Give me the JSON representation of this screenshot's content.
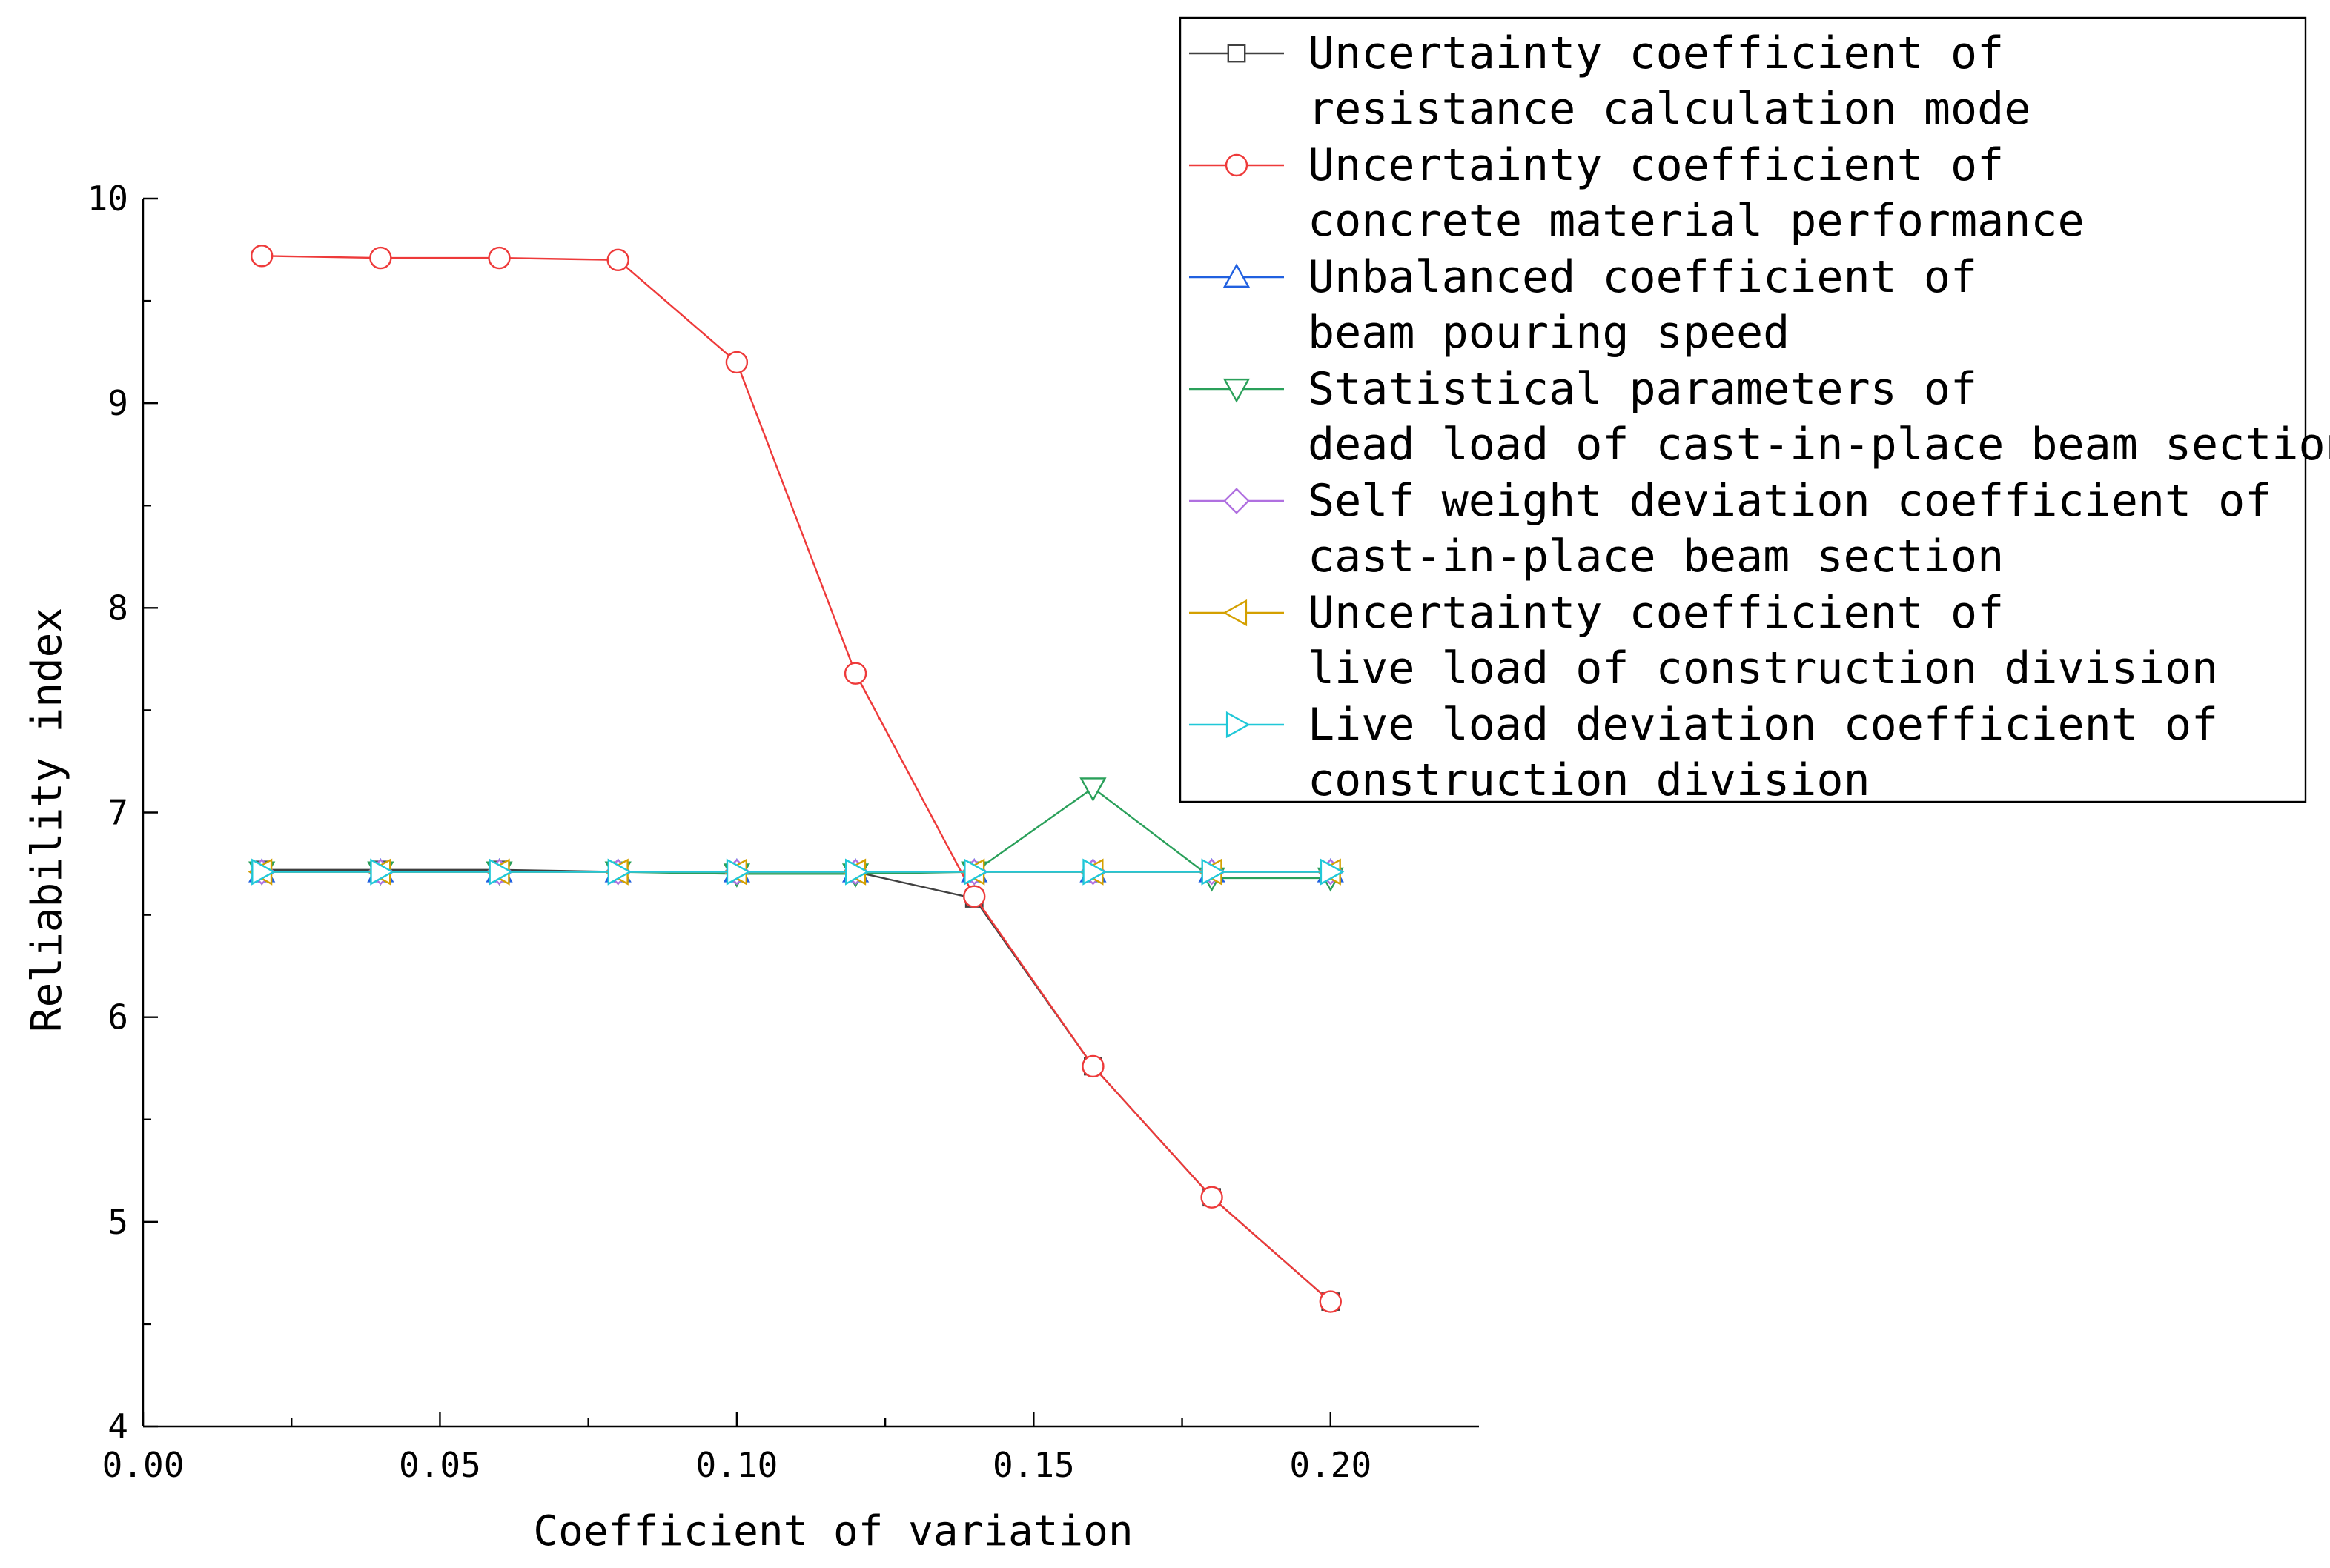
{
  "chart_data": {
    "type": "line",
    "xlabel": "Coefficient of variation",
    "ylabel": "Reliability index",
    "xlim": [
      0.0,
      0.225
    ],
    "ylim": [
      4,
      10
    ],
    "xticks": [
      0.0,
      0.05,
      0.1,
      0.15,
      0.2
    ],
    "xtick_labels": [
      "0.00",
      "0.05",
      "0.10",
      "0.15",
      "0.20"
    ],
    "yticks": [
      4,
      5,
      6,
      7,
      8,
      9,
      10
    ],
    "ytick_labels": [
      "4",
      "5",
      "6",
      "7",
      "8",
      "9",
      "10"
    ],
    "grid": false,
    "legend_position": "top-right",
    "x": [
      0.02,
      0.04,
      0.06,
      0.08,
      0.1,
      0.12,
      0.14,
      0.16,
      0.18,
      0.2
    ],
    "series": [
      {
        "name": "Uncertainty coefficient of\nresistance calculation mode",
        "color": "#404040",
        "marker": "square",
        "values": [
          6.72,
          6.72,
          6.72,
          6.71,
          6.71,
          6.71,
          6.58,
          5.76,
          5.12,
          4.61
        ]
      },
      {
        "name": "Uncertainty coefficient of\nconcrete material performance",
        "color": "#ee3a3a",
        "marker": "circle",
        "values": [
          9.72,
          9.71,
          9.71,
          9.7,
          9.2,
          7.68,
          6.59,
          5.76,
          5.12,
          4.61
        ]
      },
      {
        "name": "Unbalanced coefficient of\nbeam pouring speed",
        "color": "#2060e0",
        "marker": "triangle-up",
        "values": [
          6.71,
          6.71,
          6.71,
          6.71,
          6.71,
          6.71,
          6.71,
          6.71,
          6.71,
          6.71
        ]
      },
      {
        "name": "Statistical parameters of\ndead load of cast-in-place beam section",
        "color": "#2aa05a",
        "marker": "triangle-down",
        "values": [
          6.71,
          6.71,
          6.71,
          6.71,
          6.7,
          6.7,
          6.71,
          7.12,
          6.68,
          6.68
        ]
      },
      {
        "name": "Self weight deviation coefficient of\ncast-in-place beam section",
        "color": "#b070e0",
        "marker": "diamond",
        "values": [
          6.71,
          6.71,
          6.71,
          6.71,
          6.71,
          6.71,
          6.71,
          6.71,
          6.71,
          6.71
        ]
      },
      {
        "name": "Uncertainty coefficient of\nlive load of construction division",
        "color": "#d4a000",
        "marker": "triangle-left",
        "values": [
          6.71,
          6.71,
          6.71,
          6.71,
          6.71,
          6.71,
          6.71,
          6.71,
          6.71,
          6.71
        ]
      },
      {
        "name": "Live load deviation coefficient of\nconstruction division",
        "color": "#20c8d8",
        "marker": "triangle-right",
        "values": [
          6.71,
          6.71,
          6.71,
          6.71,
          6.71,
          6.71,
          6.71,
          6.71,
          6.71,
          6.71
        ]
      }
    ]
  }
}
